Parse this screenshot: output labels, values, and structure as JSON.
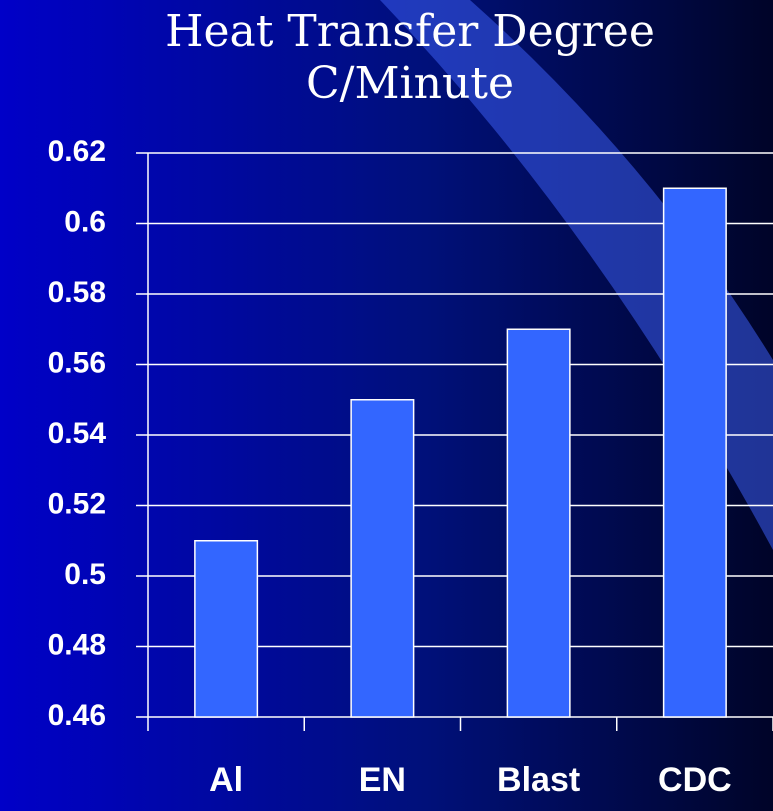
{
  "chart_data": {
    "type": "bar",
    "title": "Heat Transfer Degree C/Minute",
    "categories": [
      "Al",
      "EN",
      "Blast",
      "CDC"
    ],
    "values": [
      0.51,
      0.55,
      0.57,
      0.61
    ],
    "color": "#3366ff",
    "ylim": [
      0.46,
      0.62
    ],
    "yticks": [
      0.46,
      0.48,
      0.5,
      0.52,
      0.54,
      0.56,
      0.58,
      0.6,
      0.62
    ],
    "grid": true
  }
}
